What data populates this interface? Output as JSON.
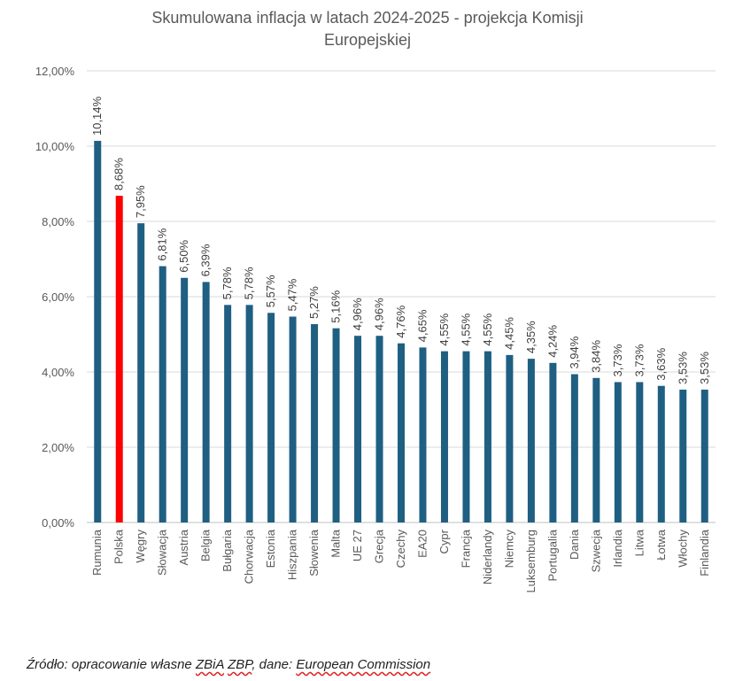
{
  "chart_data": {
    "type": "bar",
    "title_line1": "Skumulowana inflacja w latach 2024-2025 - projekcja Komisji",
    "title_line2": "Europejskiej",
    "categories": [
      "Rumunia",
      "Polska",
      "Węgry",
      "Słowacja",
      "Austria",
      "Belgia",
      "Bułgaria",
      "Chorwacja",
      "Estonia",
      "Hiszpania",
      "Słowenia",
      "Malta",
      "UE 27",
      "Grecja",
      "Czechy",
      "EA20",
      "Cypr",
      "Francja",
      "Niderlandy",
      "Niemcy",
      "Luksemburg",
      "Portugalia",
      "Dania",
      "Szwecja",
      "Irlandia",
      "Litwa",
      "Łotwa",
      "Włochy",
      "Finlandia"
    ],
    "values": [
      10.14,
      8.68,
      7.95,
      6.81,
      6.5,
      6.39,
      5.78,
      5.78,
      5.57,
      5.47,
      5.27,
      5.16,
      4.96,
      4.96,
      4.76,
      4.65,
      4.55,
      4.55,
      4.55,
      4.45,
      4.35,
      4.24,
      3.94,
      3.84,
      3.73,
      3.73,
      3.63,
      3.53,
      3.53
    ],
    "data_labels": [
      "10,14%",
      "8,68%",
      "7,95%",
      "6,81%",
      "6,50%",
      "6,39%",
      "5,78%",
      "5,78%",
      "5,57%",
      "5,47%",
      "5,27%",
      "5,16%",
      "4,96%",
      "4,96%",
      "4,76%",
      "4,65%",
      "4,55%",
      "4,55%",
      "4,55%",
      "4,45%",
      "4,35%",
      "4,24%",
      "3,94%",
      "3,84%",
      "3,73%",
      "3,73%",
      "3,63%",
      "3,53%",
      "3,53%"
    ],
    "y_ticks": [
      "0,00%",
      "2,00%",
      "4,00%",
      "6,00%",
      "8,00%",
      "10,00%",
      "12,00%"
    ],
    "ylim": [
      0,
      12
    ],
    "ytick_step": 2,
    "grid": true,
    "colors": {
      "default": "#1f5f82",
      "highlight": "#ff0000",
      "highlight_category": "Polska"
    }
  },
  "source": {
    "prefix": "Źródło: opracowanie własne ",
    "org": "ZBiA",
    "space": " ",
    "zbp": "ZBP",
    "mid": ", dane: ",
    "ec": "European Commission"
  }
}
